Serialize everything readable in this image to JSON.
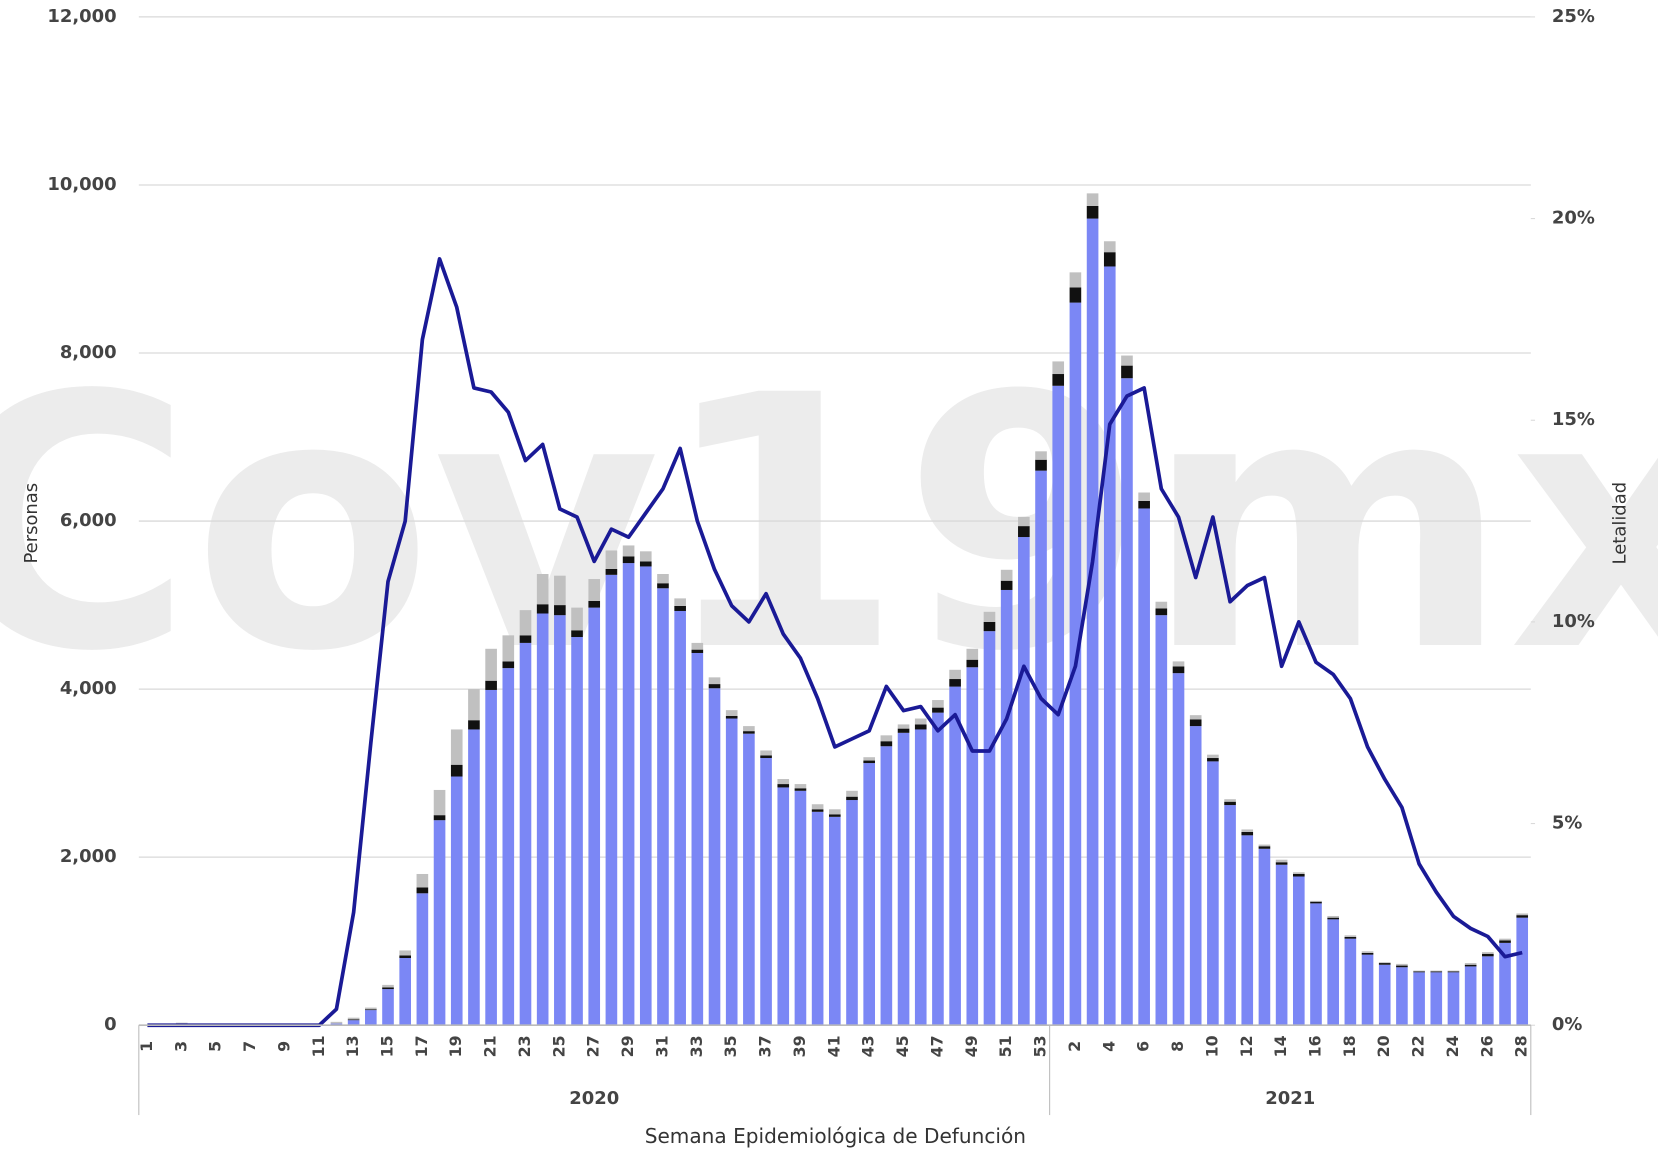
{
  "chart_data": {
    "type": "bar",
    "watermark": "Cov19mx",
    "x_label": "Semana Epidemiológica de Defunción",
    "y_label": "Personas",
    "y2_label": "Letalidad",
    "categories": [
      "1",
      null,
      "3",
      null,
      "5",
      null,
      "7",
      null,
      "9",
      null,
      "11",
      null,
      "13",
      null,
      "15",
      null,
      "17",
      null,
      "19",
      null,
      "21",
      null,
      "23",
      null,
      "25",
      null,
      "27",
      null,
      "29",
      null,
      "31",
      null,
      "33",
      null,
      "35",
      null,
      "37",
      null,
      "39",
      null,
      "41",
      null,
      "43",
      null,
      "45",
      null,
      "47",
      null,
      "49",
      null,
      "51",
      null,
      "53",
      null,
      "2",
      null,
      "4",
      null,
      "6",
      null,
      "8",
      null,
      "10",
      null,
      "12",
      null,
      "14",
      null,
      "16",
      null,
      "18",
      null,
      "20",
      null,
      "22",
      null,
      "24",
      null,
      "26",
      null,
      "28"
    ],
    "groups": [
      "2020",
      "2021"
    ],
    "group_sizes": [
      53,
      28
    ],
    "ylim": [
      0,
      12000
    ],
    "yticks": [
      0,
      {
        "value": 2000,
        "label": "2,000"
      },
      {
        "value": 4000,
        "label": "4,000"
      },
      {
        "value": 6000,
        "label": "6,000"
      },
      {
        "value": 8000,
        "label": "8,000"
      },
      {
        "value": 10000,
        "label": "10,000"
      },
      {
        "value": 12000,
        "label": "12,000"
      }
    ],
    "y2lim": [
      0,
      25
    ],
    "y2ticks": [
      {
        "value": 0,
        "label": "0%"
      },
      {
        "value": 5,
        "label": "5%"
      },
      {
        "value": 10,
        "label": "10%"
      },
      {
        "value": 15,
        "label": "15%"
      },
      {
        "value": 20,
        "label": "20%"
      },
      {
        "value": 25,
        "label": "25%"
      }
    ],
    "grid": true,
    "series": [
      {
        "color": "#7b87f5",
        "values": [
          0,
          0,
          10,
          0,
          0,
          0,
          0,
          0,
          0,
          0,
          0,
          20,
          60,
          180,
          430,
          800,
          1570,
          2440,
          2960,
          3520,
          3990,
          4250,
          4550,
          4900,
          4880,
          4620,
          4970,
          5360,
          5500,
          5460,
          5200,
          4930,
          4430,
          4010,
          3650,
          3470,
          3180,
          2830,
          2790,
          2540,
          2480,
          2680,
          3120,
          3320,
          3480,
          3520,
          3720,
          4030,
          4260,
          4690,
          5180,
          5810,
          6600,
          7610,
          8600,
          9600,
          9030,
          7700,
          6150,
          4880,
          4190,
          3560,
          3140,
          2620,
          2260,
          2100,
          1910,
          1770,
          1450,
          1260,
          1030,
          840,
          720,
          690,
          630,
          630,
          630,
          700,
          820,
          980,
          1280
        ]
      },
      {
        "color": "#111111",
        "values": [
          0,
          0,
          0,
          0,
          0,
          0,
          0,
          0,
          0,
          0,
          0,
          0,
          10,
          10,
          20,
          30,
          70,
          60,
          140,
          110,
          110,
          80,
          90,
          110,
          120,
          80,
          80,
          70,
          80,
          60,
          60,
          60,
          40,
          50,
          30,
          30,
          30,
          40,
          30,
          30,
          30,
          40,
          30,
          60,
          50,
          60,
          60,
          90,
          90,
          110,
          110,
          130,
          130,
          140,
          180,
          150,
          170,
          150,
          90,
          80,
          80,
          80,
          40,
          40,
          40,
          30,
          30,
          30,
          20,
          20,
          20,
          20,
          20,
          20,
          10,
          10,
          10,
          20,
          30,
          30,
          30
        ]
      },
      {
        "color": "#c0c0c0",
        "values": [
          0,
          0,
          20,
          0,
          0,
          0,
          0,
          0,
          0,
          0,
          0,
          20,
          20,
          20,
          30,
          60,
          160,
          300,
          420,
          370,
          380,
          310,
          300,
          360,
          350,
          270,
          260,
          220,
          130,
          120,
          110,
          90,
          80,
          80,
          70,
          60,
          60,
          60,
          50,
          60,
          60,
          70,
          40,
          70,
          50,
          70,
          90,
          110,
          130,
          120,
          130,
          110,
          100,
          150,
          180,
          150,
          130,
          120,
          100,
          80,
          60,
          50,
          40,
          30,
          30,
          20,
          30,
          20,
          10,
          20,
          20,
          20,
          10,
          20,
          10,
          10,
          10,
          20,
          20,
          20,
          20
        ]
      },
      {
        "type": "line",
        "axis": "y2",
        "color": "#1a1a96",
        "values": [
          0,
          0,
          0,
          0,
          0,
          0,
          0,
          0,
          0,
          0,
          0,
          0.4,
          2.8,
          7,
          11,
          12.5,
          17,
          19,
          17.8,
          15.8,
          15.7,
          15.2,
          14,
          14.4,
          12.8,
          12.6,
          11.5,
          12.3,
          12.1,
          12.7,
          13.3,
          14.3,
          12.5,
          11.3,
          10.4,
          10,
          10.7,
          9.7,
          9.1,
          8.1,
          6.9,
          7.1,
          7.3,
          8.4,
          7.8,
          7.9,
          7.3,
          7.7,
          6.8,
          6.8,
          7.6,
          8.9,
          8.1,
          7.7,
          8.9,
          11.5,
          14.9,
          15.6,
          15.8,
          13.3,
          12.6,
          11.1,
          12.6,
          10.5,
          10.9,
          11.1,
          8.9,
          10,
          9,
          8.7,
          8.1,
          6.9,
          6.1,
          5.4,
          4,
          3.3,
          2.7,
          2.4,
          2.2,
          1.7,
          1.8
        ]
      }
    ]
  }
}
